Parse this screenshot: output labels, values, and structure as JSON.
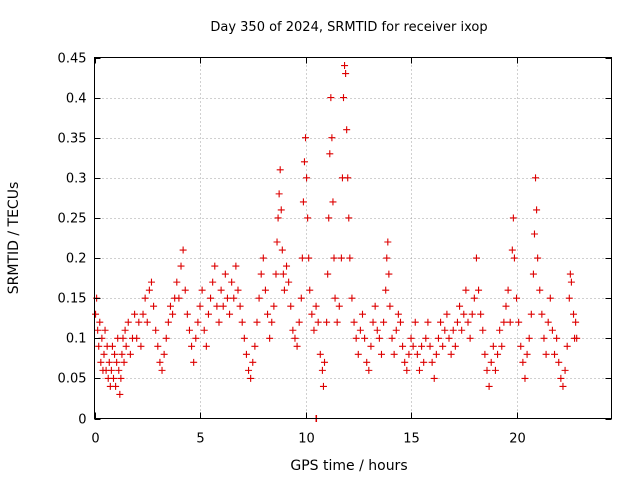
{
  "chart_data": {
    "type": "scatter",
    "title": "Day 350 of 2024, SRMTID for receiver ixop",
    "xlabel": "GPS time / hours",
    "ylabel": "SRMTID / TECUs",
    "xlim": [
      0,
      24.5
    ],
    "ylim": [
      0,
      0.45
    ],
    "xticks": [
      0,
      5,
      10,
      15,
      20
    ],
    "xtick_labels": [
      "0",
      "5",
      "10",
      "15",
      "20"
    ],
    "yticks": [
      0,
      0.05,
      0.1,
      0.15,
      0.2,
      0.25,
      0.3,
      0.35,
      0.4,
      0.45
    ],
    "ytick_labels": [
      "0",
      "0.05",
      "0.1",
      "0.15",
      "0.2",
      "0.25",
      "0.3",
      "0.35",
      "0.4",
      "0.45"
    ],
    "grid": true,
    "marker": "plus",
    "color": "#dd0000",
    "series": [
      {
        "name": "SRMTID",
        "points": [
          [
            0.05,
            0.13
          ],
          [
            0.1,
            0.15
          ],
          [
            0.15,
            0.11
          ],
          [
            0.2,
            0.09
          ],
          [
            0.25,
            0.12
          ],
          [
            0.3,
            0.07
          ],
          [
            0.35,
            0.1
          ],
          [
            0.4,
            0.06
          ],
          [
            0.45,
            0.08
          ],
          [
            0.5,
            0.11
          ],
          [
            0.55,
            0.06
          ],
          [
            0.6,
            0.09
          ],
          [
            0.65,
            0.05
          ],
          [
            0.7,
            0.07
          ],
          [
            0.75,
            0.04
          ],
          [
            0.8,
            0.06
          ],
          [
            0.85,
            0.09
          ],
          [
            0.9,
            0.05
          ],
          [
            0.95,
            0.08
          ],
          [
            1.0,
            0.04
          ],
          [
            1.05,
            0.07
          ],
          [
            1.1,
            0.1
          ],
          [
            1.15,
            0.06
          ],
          [
            1.2,
            0.03
          ],
          [
            1.25,
            0.05
          ],
          [
            1.3,
            0.08
          ],
          [
            1.35,
            0.1
          ],
          [
            1.4,
            0.07
          ],
          [
            1.45,
            0.11
          ],
          [
            1.5,
            0.09
          ],
          [
            1.6,
            0.12
          ],
          [
            1.7,
            0.08
          ],
          [
            1.8,
            0.1
          ],
          [
            1.9,
            0.13
          ],
          [
            2.0,
            0.1
          ],
          [
            2.1,
            0.12
          ],
          [
            2.2,
            0.09
          ],
          [
            2.3,
            0.13
          ],
          [
            2.4,
            0.15
          ],
          [
            2.5,
            0.12
          ],
          [
            2.6,
            0.16
          ],
          [
            2.7,
            0.17
          ],
          [
            2.8,
            0.14
          ],
          [
            2.9,
            0.11
          ],
          [
            3.0,
            0.09
          ],
          [
            3.1,
            0.07
          ],
          [
            3.2,
            0.06
          ],
          [
            3.3,
            0.08
          ],
          [
            3.4,
            0.1
          ],
          [
            3.5,
            0.12
          ],
          [
            3.6,
            0.14
          ],
          [
            3.7,
            0.13
          ],
          [
            3.8,
            0.15
          ],
          [
            3.9,
            0.17
          ],
          [
            4.0,
            0.15
          ],
          [
            4.1,
            0.19
          ],
          [
            4.2,
            0.21
          ],
          [
            4.3,
            0.16
          ],
          [
            4.4,
            0.13
          ],
          [
            4.5,
            0.11
          ],
          [
            4.6,
            0.09
          ],
          [
            4.7,
            0.07
          ],
          [
            4.8,
            0.1
          ],
          [
            4.9,
            0.12
          ],
          [
            5.0,
            0.14
          ],
          [
            5.1,
            0.16
          ],
          [
            5.2,
            0.11
          ],
          [
            5.3,
            0.09
          ],
          [
            5.4,
            0.13
          ],
          [
            5.5,
            0.15
          ],
          [
            5.6,
            0.17
          ],
          [
            5.7,
            0.19
          ],
          [
            5.8,
            0.14
          ],
          [
            5.9,
            0.12
          ],
          [
            6.0,
            0.16
          ],
          [
            6.1,
            0.14
          ],
          [
            6.2,
            0.18
          ],
          [
            6.3,
            0.15
          ],
          [
            6.4,
            0.13
          ],
          [
            6.5,
            0.17
          ],
          [
            6.6,
            0.15
          ],
          [
            6.7,
            0.19
          ],
          [
            6.8,
            0.16
          ],
          [
            6.9,
            0.14
          ],
          [
            7.0,
            0.12
          ],
          [
            7.1,
            0.1
          ],
          [
            7.2,
            0.08
          ],
          [
            7.3,
            0.06
          ],
          [
            7.4,
            0.05
          ],
          [
            7.5,
            0.07
          ],
          [
            7.6,
            0.09
          ],
          [
            7.7,
            0.12
          ],
          [
            7.8,
            0.15
          ],
          [
            7.9,
            0.18
          ],
          [
            8.0,
            0.2
          ],
          [
            8.1,
            0.16
          ],
          [
            8.2,
            0.13
          ],
          [
            8.3,
            0.1
          ],
          [
            8.4,
            0.12
          ],
          [
            8.5,
            0.14
          ],
          [
            8.6,
            0.18
          ],
          [
            8.65,
            0.22
          ],
          [
            8.7,
            0.25
          ],
          [
            8.75,
            0.28
          ],
          [
            8.8,
            0.31
          ],
          [
            8.85,
            0.26
          ],
          [
            8.9,
            0.21
          ],
          [
            8.95,
            0.18
          ],
          [
            9.0,
            0.16
          ],
          [
            9.1,
            0.19
          ],
          [
            9.2,
            0.17
          ],
          [
            9.3,
            0.14
          ],
          [
            9.4,
            0.11
          ],
          [
            9.5,
            0.1
          ],
          [
            9.6,
            0.09
          ],
          [
            9.7,
            0.12
          ],
          [
            9.8,
            0.15
          ],
          [
            9.85,
            0.2
          ],
          [
            9.9,
            0.27
          ],
          [
            9.95,
            0.32
          ],
          [
            10.0,
            0.35
          ],
          [
            10.05,
            0.3
          ],
          [
            10.1,
            0.25
          ],
          [
            10.15,
            0.2
          ],
          [
            10.2,
            0.16
          ],
          [
            10.3,
            0.13
          ],
          [
            10.4,
            0.11
          ],
          [
            10.5,
            0.14
          ],
          [
            10.6,
            0.12
          ],
          [
            10.7,
            0.08
          ],
          [
            10.8,
            0.06
          ],
          [
            10.85,
            0.04
          ],
          [
            10.9,
            0.07
          ],
          [
            11.0,
            0.12
          ],
          [
            11.05,
            0.18
          ],
          [
            11.1,
            0.25
          ],
          [
            11.15,
            0.33
          ],
          [
            11.2,
            0.4
          ],
          [
            11.25,
            0.35
          ],
          [
            11.3,
            0.27
          ],
          [
            11.35,
            0.2
          ],
          [
            11.4,
            0.15
          ],
          [
            11.5,
            0.12
          ],
          [
            11.6,
            0.14
          ],
          [
            11.7,
            0.2
          ],
          [
            11.75,
            0.3
          ],
          [
            11.8,
            0.4
          ],
          [
            11.85,
            0.44
          ],
          [
            11.9,
            0.43
          ],
          [
            11.95,
            0.36
          ],
          [
            12.0,
            0.3
          ],
          [
            12.05,
            0.25
          ],
          [
            12.1,
            0.2
          ],
          [
            12.2,
            0.15
          ],
          [
            12.3,
            0.12
          ],
          [
            12.4,
            0.1
          ],
          [
            12.5,
            0.08
          ],
          [
            12.6,
            0.11
          ],
          [
            12.7,
            0.13
          ],
          [
            12.8,
            0.1
          ],
          [
            12.9,
            0.07
          ],
          [
            13.0,
            0.06
          ],
          [
            13.1,
            0.09
          ],
          [
            13.2,
            0.12
          ],
          [
            13.3,
            0.14
          ],
          [
            13.4,
            0.11
          ],
          [
            13.5,
            0.1
          ],
          [
            13.6,
            0.08
          ],
          [
            13.7,
            0.12
          ],
          [
            13.8,
            0.16
          ],
          [
            13.85,
            0.2
          ],
          [
            13.9,
            0.22
          ],
          [
            13.95,
            0.18
          ],
          [
            14.0,
            0.14
          ],
          [
            14.1,
            0.1
          ],
          [
            14.2,
            0.08
          ],
          [
            14.3,
            0.11
          ],
          [
            14.4,
            0.13
          ],
          [
            14.5,
            0.12
          ],
          [
            14.6,
            0.09
          ],
          [
            14.7,
            0.07
          ],
          [
            14.8,
            0.06
          ],
          [
            14.9,
            0.08
          ],
          [
            15.0,
            0.1
          ],
          [
            15.1,
            0.09
          ],
          [
            15.2,
            0.12
          ],
          [
            15.3,
            0.08
          ],
          [
            15.4,
            0.06
          ],
          [
            15.5,
            0.09
          ],
          [
            15.6,
            0.07
          ],
          [
            15.7,
            0.1
          ],
          [
            15.8,
            0.12
          ],
          [
            15.9,
            0.09
          ],
          [
            16.0,
            0.07
          ],
          [
            16.1,
            0.05
          ],
          [
            16.2,
            0.08
          ],
          [
            16.3,
            0.1
          ],
          [
            16.4,
            0.12
          ],
          [
            16.5,
            0.09
          ],
          [
            16.6,
            0.11
          ],
          [
            16.7,
            0.13
          ],
          [
            16.8,
            0.1
          ],
          [
            16.9,
            0.08
          ],
          [
            17.0,
            0.11
          ],
          [
            17.1,
            0.09
          ],
          [
            17.2,
            0.12
          ],
          [
            17.3,
            0.14
          ],
          [
            17.4,
            0.11
          ],
          [
            17.5,
            0.13
          ],
          [
            17.6,
            0.16
          ],
          [
            17.7,
            0.12
          ],
          [
            17.8,
            0.1
          ],
          [
            17.9,
            0.13
          ],
          [
            18.0,
            0.15
          ],
          [
            18.1,
            0.2
          ],
          [
            18.2,
            0.16
          ],
          [
            18.3,
            0.13
          ],
          [
            18.4,
            0.11
          ],
          [
            18.5,
            0.08
          ],
          [
            18.6,
            0.06
          ],
          [
            18.7,
            0.04
          ],
          [
            18.8,
            0.07
          ],
          [
            18.9,
            0.09
          ],
          [
            19.0,
            0.06
          ],
          [
            19.1,
            0.08
          ],
          [
            19.2,
            0.11
          ],
          [
            19.3,
            0.09
          ],
          [
            19.4,
            0.12
          ],
          [
            19.5,
            0.14
          ],
          [
            19.6,
            0.16
          ],
          [
            19.7,
            0.12
          ],
          [
            19.8,
            0.21
          ],
          [
            19.85,
            0.25
          ],
          [
            19.9,
            0.2
          ],
          [
            20.0,
            0.15
          ],
          [
            20.1,
            0.12
          ],
          [
            20.2,
            0.09
          ],
          [
            20.3,
            0.07
          ],
          [
            20.4,
            0.05
          ],
          [
            20.5,
            0.08
          ],
          [
            20.6,
            0.1
          ],
          [
            20.7,
            0.13
          ],
          [
            20.8,
            0.18
          ],
          [
            20.85,
            0.23
          ],
          [
            20.9,
            0.3
          ],
          [
            20.95,
            0.26
          ],
          [
            21.0,
            0.2
          ],
          [
            21.1,
            0.16
          ],
          [
            21.2,
            0.13
          ],
          [
            21.3,
            0.1
          ],
          [
            21.4,
            0.08
          ],
          [
            21.5,
            0.12
          ],
          [
            21.6,
            0.15
          ],
          [
            21.7,
            0.11
          ],
          [
            21.8,
            0.08
          ],
          [
            21.9,
            0.1
          ],
          [
            22.0,
            0.07
          ],
          [
            22.1,
            0.05
          ],
          [
            22.2,
            0.04
          ],
          [
            22.3,
            0.06
          ],
          [
            22.4,
            0.09
          ],
          [
            22.5,
            0.15
          ],
          [
            22.55,
            0.18
          ],
          [
            22.6,
            0.17
          ],
          [
            22.7,
            0.13
          ],
          [
            22.75,
            0.1
          ],
          [
            22.8,
            0.12
          ],
          [
            22.85,
            0.1
          ],
          [
            10.5,
            0.0
          ],
          [
            10.52,
            0.0
          ]
        ]
      }
    ]
  }
}
